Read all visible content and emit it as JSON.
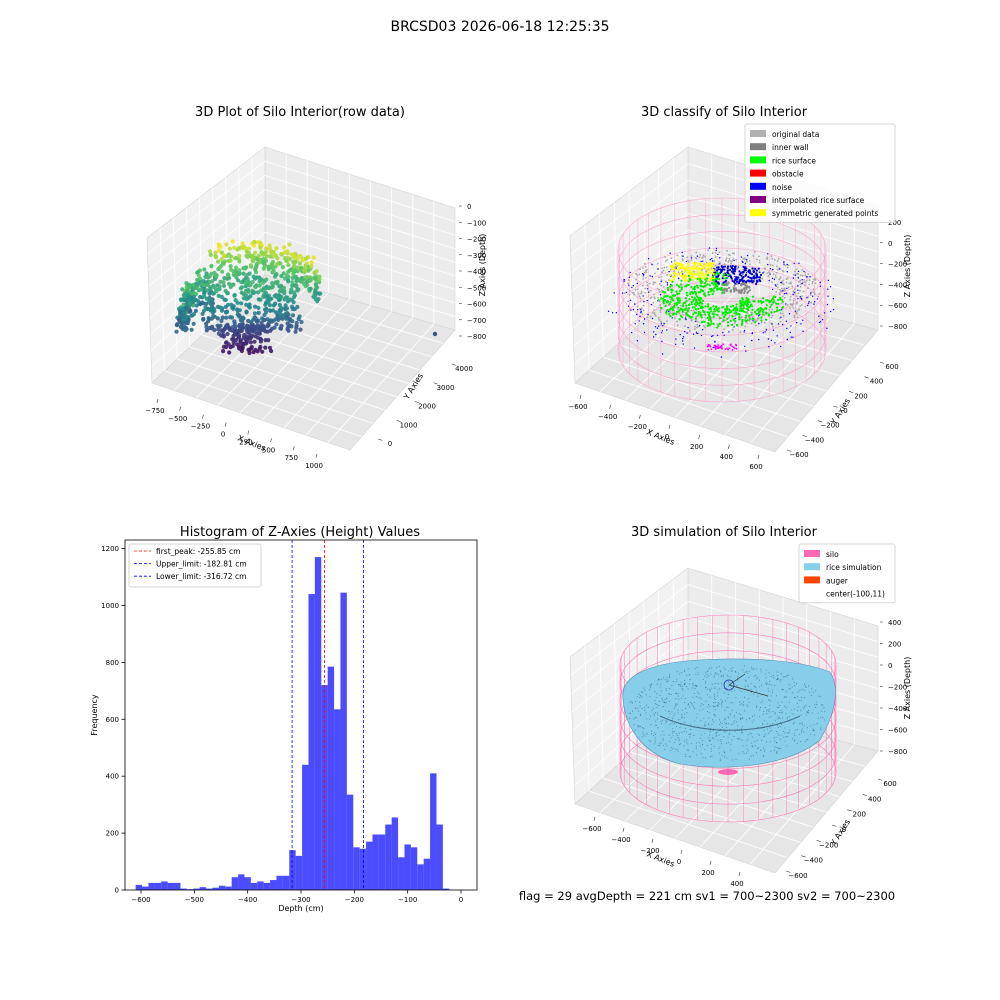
{
  "page": {
    "suptitle": "BRCSD03 2026-06-18 12:25:35",
    "footer": "flag = 29  avgDepth = 221 cm  sv1 = 700~2300  sv2 = 700~2300"
  },
  "chart_data": [
    {
      "id": "raw",
      "type": "scatter",
      "projection": "3d",
      "title": "3D Plot of Silo Interior(row data)",
      "xlabel": "X Axies",
      "ylabel": "Y Axies",
      "zlabel": "Z Axies (Depth)",
      "xticks": [
        "−750",
        "−500",
        "−250",
        "0",
        "250",
        "500",
        "750",
        "1000"
      ],
      "yticks": [
        "0",
        "1000",
        "2000",
        "3000",
        "4000"
      ],
      "zticks": [
        "0",
        "−100",
        "−200",
        "−300",
        "−400",
        "−500",
        "−600",
        "−700",
        "−800"
      ],
      "colormap": [
        "#440154",
        "#3b528b",
        "#21918c",
        "#5ec962",
        "#fde725"
      ],
      "grid": true
    },
    {
      "id": "classify",
      "type": "scatter",
      "projection": "3d",
      "title": "3D classify of Silo Interior",
      "xlabel": "X Axies",
      "ylabel": "Y Axies",
      "zlabel": "Z Axies (Depth)",
      "xticks": [
        "−600",
        "−400",
        "−200",
        "0",
        "200",
        "400",
        "600"
      ],
      "yticks": [
        "−600",
        "−400",
        "−200",
        "0",
        "200",
        "400",
        "600"
      ],
      "zticks": [
        "200",
        "0",
        "−200",
        "−400",
        "−600",
        "−800"
      ],
      "legend_loc": "upper right",
      "legend": [
        {
          "label": "original data",
          "color": "#b0b0b0"
        },
        {
          "label": "inner wall",
          "color": "#808080"
        },
        {
          "label": "rice surface",
          "color": "#00ff00"
        },
        {
          "label": "obstacle",
          "color": "#ff0000"
        },
        {
          "label": "noise",
          "color": "#0000ff"
        },
        {
          "label": "interpolated rice surface",
          "color": "#800080"
        },
        {
          "label": "symmetric generated points",
          "color": "#ffff00"
        }
      ],
      "wall_color": "#ff9ccd",
      "grid": true
    },
    {
      "id": "hist",
      "type": "bar",
      "title": "Histogram of Z-Axies (Height) Values",
      "xlabel": "Depth (cm)",
      "ylabel": "Frequency",
      "xlim": [
        -630,
        30
      ],
      "ylim": [
        0,
        1230
      ],
      "xticks": [
        -600,
        -500,
        -400,
        -300,
        -200,
        -100,
        0
      ],
      "yticks": [
        0,
        200,
        400,
        600,
        800,
        1000,
        1200
      ],
      "bin_edges": [
        -610,
        -598,
        -586,
        -574,
        -562,
        -550,
        -538,
        -526,
        -514,
        -502,
        -490,
        -478,
        -466,
        -454,
        -442,
        -430,
        -418,
        -406,
        -394,
        -382,
        -370,
        -358,
        -346,
        -334,
        -322,
        -310,
        -298,
        -286,
        -274,
        -262,
        -250,
        -238,
        -226,
        -214,
        -202,
        -190,
        -178,
        -166,
        -154,
        -142,
        -130,
        -118,
        -106,
        -94,
        -82,
        -70,
        -58,
        -46,
        -34,
        -22,
        -10,
        -4
      ],
      "values": [
        18,
        12,
        25,
        25,
        30,
        25,
        25,
        5,
        3,
        5,
        10,
        5,
        8,
        15,
        12,
        45,
        55,
        45,
        25,
        30,
        25,
        35,
        50,
        50,
        140,
        120,
        440,
        1040,
        1170,
        720,
        785,
        635,
        1045,
        335,
        150,
        145,
        170,
        195,
        195,
        230,
        255,
        115,
        160,
        150,
        90,
        110,
        410,
        230,
        5,
        0,
        0
      ],
      "bar_color": "#0000ff",
      "bar_alpha": 0.7,
      "lines": [
        {
          "label": "first_peak: -255.85 cm",
          "x": -255.85,
          "color": "#ff0000"
        },
        {
          "label": "Upper_limit: -182.81 cm",
          "x": -182.81,
          "color": "#0000ff"
        },
        {
          "label": "Lower_limit: -316.72 cm",
          "x": -316.72,
          "color": "#0000ff"
        }
      ],
      "legend_loc": "upper left",
      "grid": false
    },
    {
      "id": "sim",
      "type": "surface",
      "projection": "3d",
      "title": "3D simulation of Silo Interior",
      "xlabel": "X Axies",
      "ylabel": "Y Axies",
      "zlabel": "Z Axies (Depth)",
      "xticks": [
        "−600",
        "−400",
        "−200",
        "0",
        "200",
        "400"
      ],
      "yticks": [
        "−600",
        "−400",
        "−200",
        "0",
        "200",
        "400",
        "600"
      ],
      "zticks": [
        "400",
        "200",
        "0",
        "−200",
        "−400",
        "−600",
        "−800"
      ],
      "legend_loc": "upper right",
      "legend": [
        {
          "label": "silo",
          "color": "#ff69b4"
        },
        {
          "label": "rice simulation",
          "color": "#87ceeb"
        },
        {
          "label": "auger",
          "color": "#ff4500"
        },
        {
          "label": "center(-100,11)",
          "color": ""
        }
      ],
      "grid": true
    }
  ]
}
